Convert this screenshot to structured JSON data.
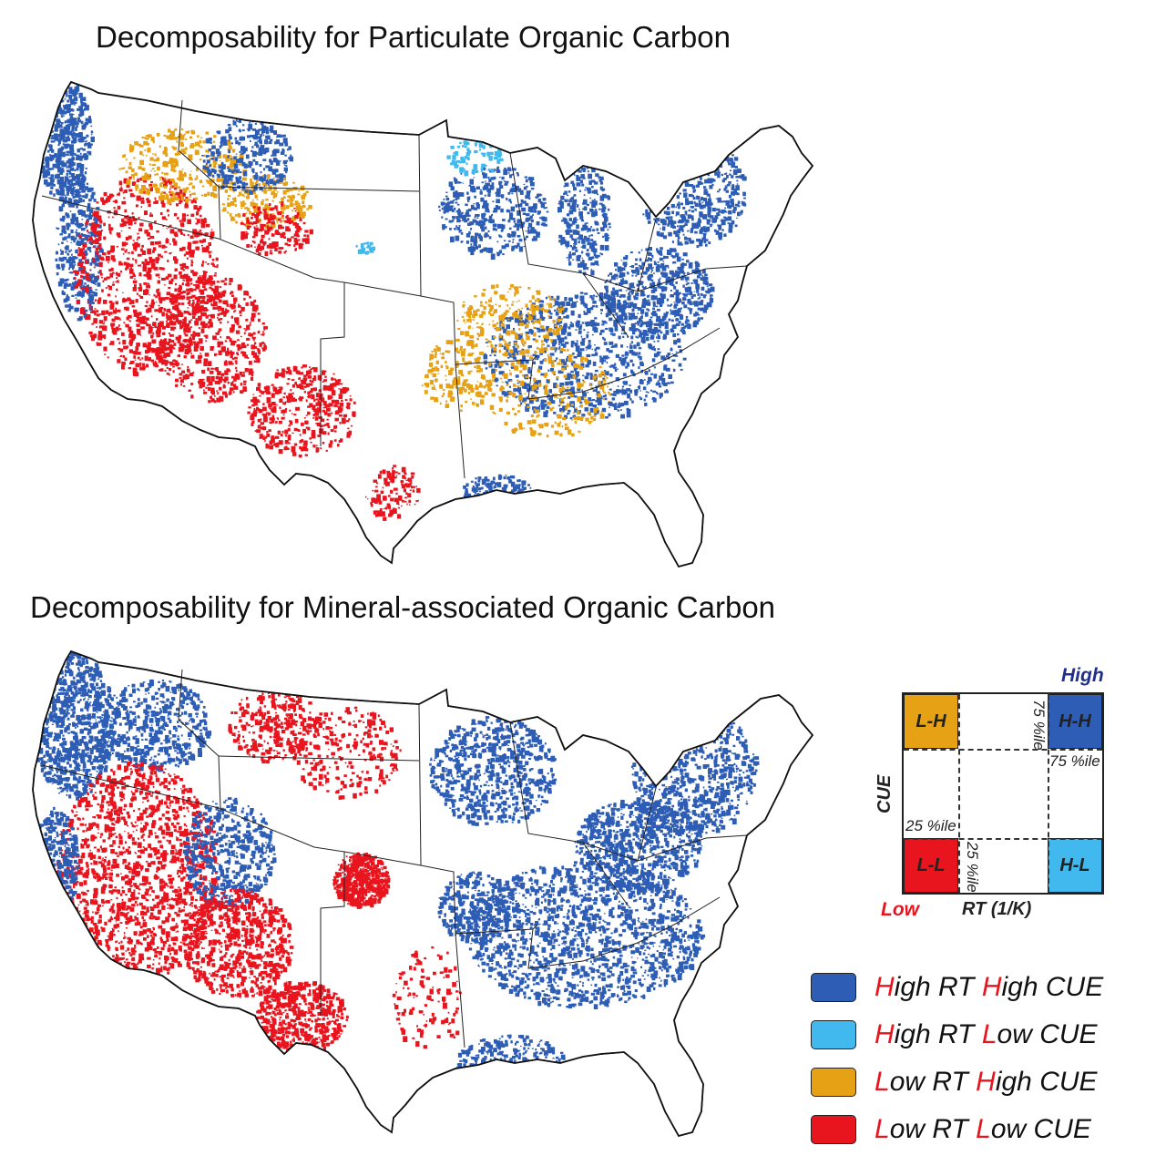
{
  "titles": {
    "top": "Decomposability for Particulate Organic Carbon",
    "bottom": "Decomposability for Mineral-associated Organic Carbon"
  },
  "colors": {
    "high_rt_high_cue": "#2d5db5",
    "high_rt_low_cue": "#42b9ee",
    "low_rt_high_cue": "#e6a114",
    "low_rt_low_cue": "#e8141e",
    "highlight_letter": "#e8141e",
    "high_label": "#1f2f8a"
  },
  "quadrant_key": {
    "high_label": "High",
    "low_label": "Low",
    "x_axis_label": "RT (1/K)",
    "y_axis_label": "CUE",
    "quadrants": {
      "top_left": "L-H",
      "top_right": "H-H",
      "bottom_left": "L-L",
      "bottom_right": "H-L"
    },
    "pct_75_vertical": "75 %ile",
    "pct_75_horizontal": "75 %ile",
    "pct_25_horizontal": "25 %ile",
    "pct_25_vertical": "25 %ile"
  },
  "legend": [
    {
      "first_letter": "H",
      "first_rest": "igh RT ",
      "second_letter": "H",
      "second_rest": "igh CUE",
      "color_key": "high_rt_high_cue"
    },
    {
      "first_letter": "H",
      "first_rest": "igh RT ",
      "second_letter": "L",
      "second_rest": "ow CUE",
      "color_key": "high_rt_low_cue"
    },
    {
      "first_letter": "L",
      "first_rest": "ow RT ",
      "second_letter": "H",
      "second_rest": "igh CUE",
      "color_key": "low_rt_high_cue"
    },
    {
      "first_letter": "L",
      "first_rest": "ow RT ",
      "second_letter": "L",
      "second_rest": "ow CUE",
      "color_key": "low_rt_low_cue"
    }
  ]
}
